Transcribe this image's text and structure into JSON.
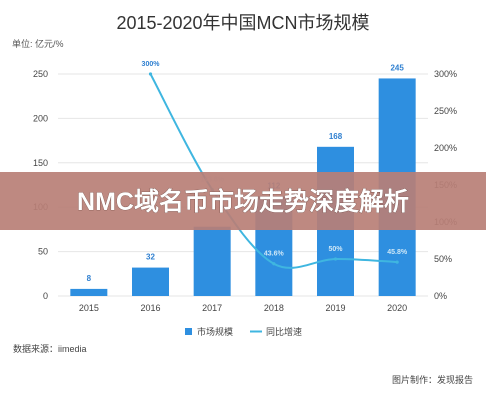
{
  "chart_data": {
    "type": "bar",
    "title": "2015-2020年中国MCN市场规模",
    "unit_label": "单位: 亿元/%",
    "categories": [
      "2015",
      "2016",
      "2017",
      "2018",
      "2019",
      "2020"
    ],
    "series": [
      {
        "name": "市场规模",
        "type": "bar",
        "axis": "left",
        "values": [
          8,
          32,
          78,
          112,
          168,
          245
        ],
        "labels": [
          "8",
          "32",
          "",
          "112",
          "168",
          "245"
        ],
        "color": "#2e8fe0"
      },
      {
        "name": "同比增速",
        "type": "line",
        "axis": "right",
        "values": [
          null,
          300,
          143.8,
          43.6,
          50,
          45.8
        ],
        "labels": [
          "",
          "300%",
          "143.8%",
          "43.6%",
          "50%",
          "45.8%"
        ],
        "color": "#3fb6e0"
      }
    ],
    "y_left": {
      "ticks": [
        0,
        50,
        100,
        150,
        200,
        250
      ],
      "ylim": [
        0,
        250
      ]
    },
    "y_right": {
      "ticks": [
        "0%",
        "50%",
        "100%",
        "150%",
        "200%",
        "250%",
        "300%"
      ],
      "ylim": [
        0,
        300
      ]
    },
    "legend": {
      "position": "bottom-center"
    },
    "grid": true
  },
  "overlay": {
    "text": "NMC域名币市场走势深度解析",
    "band_color": "#b97f76"
  },
  "footer": {
    "source": "数据来源：iimedia",
    "credit": "图片制作：发现报告"
  }
}
